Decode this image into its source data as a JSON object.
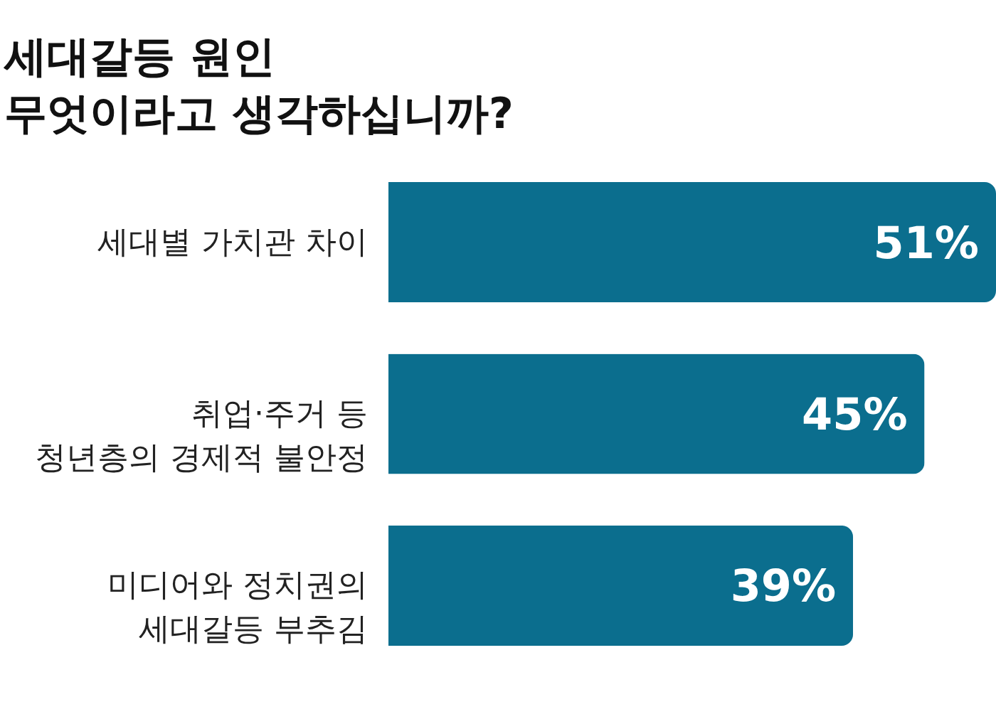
{
  "chart_data": {
    "type": "bar",
    "orientation": "horizontal",
    "title": "세대갈등 원인\n무엇이라고 생각하십니까?",
    "categories": [
      "세대별 가치관 차이",
      "취업·주거 등\n청년층의 경제적 불안정",
      "미디어와 정치권의\n세대갈등 부추김"
    ],
    "values": [
      51,
      45,
      39
    ],
    "color": "#0b6e8e",
    "value_labels": [
      "51%",
      "45%",
      "39%"
    ]
  }
}
